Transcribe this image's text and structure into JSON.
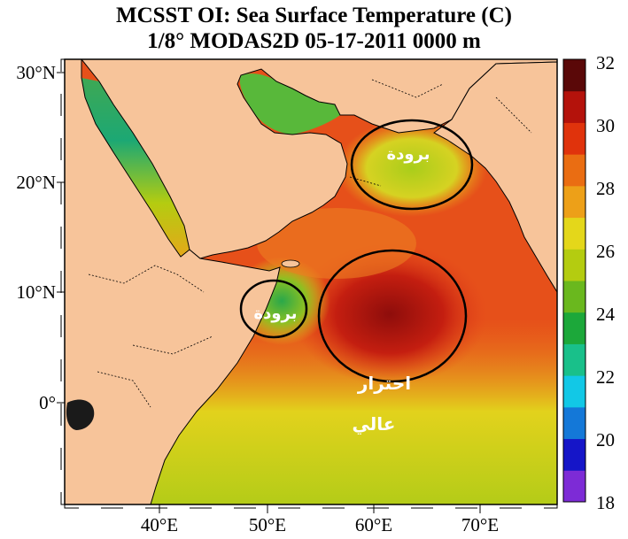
{
  "title": {
    "line1": "MCSST OI:  Sea Surface Temperature (C)",
    "line2": "1/8° MODAS2D 05-17-2011 0000 m"
  },
  "axes": {
    "lat_labels": [
      "30°N",
      "20°N",
      "10°N",
      "0°"
    ],
    "lon_labels": [
      "40°E",
      "50°E",
      "60°E",
      "70°E"
    ],
    "lat_values": [
      30,
      20,
      10,
      0
    ],
    "lon_values": [
      40,
      50,
      60,
      70
    ],
    "lat_range": [
      -9,
      31
    ],
    "lon_range": [
      32,
      77
    ]
  },
  "colorbar": {
    "labels": [
      "32",
      "30",
      "28",
      "26",
      "24",
      "22",
      "20",
      "18"
    ],
    "min": 18,
    "max": 32,
    "colors": [
      "#7d2bd6",
      "#1515c8",
      "#1478d8",
      "#12c8e6",
      "#19c08a",
      "#1ca83a",
      "#6ab81e",
      "#b4cc10",
      "#e4d71a",
      "#eda018",
      "#ea6d12",
      "#e0330c",
      "#b4120b",
      "#5a0808"
    ]
  },
  "annotations": [
    {
      "id": "cold-north",
      "text": "برودة"
    },
    {
      "id": "cold-somalia",
      "text": "برودة"
    },
    {
      "id": "warm-center-line1",
      "text": "احترار"
    },
    {
      "id": "warm-center-line2",
      "text": "عالي"
    }
  ],
  "colors": {
    "land": "#f7c49a",
    "sea_warm": "#e4421a",
    "sea_hot": "#a81510",
    "sea_mid": "#ef7a22",
    "sea_cool": "#e7d22a",
    "sea_cold": "#4cb64a"
  }
}
